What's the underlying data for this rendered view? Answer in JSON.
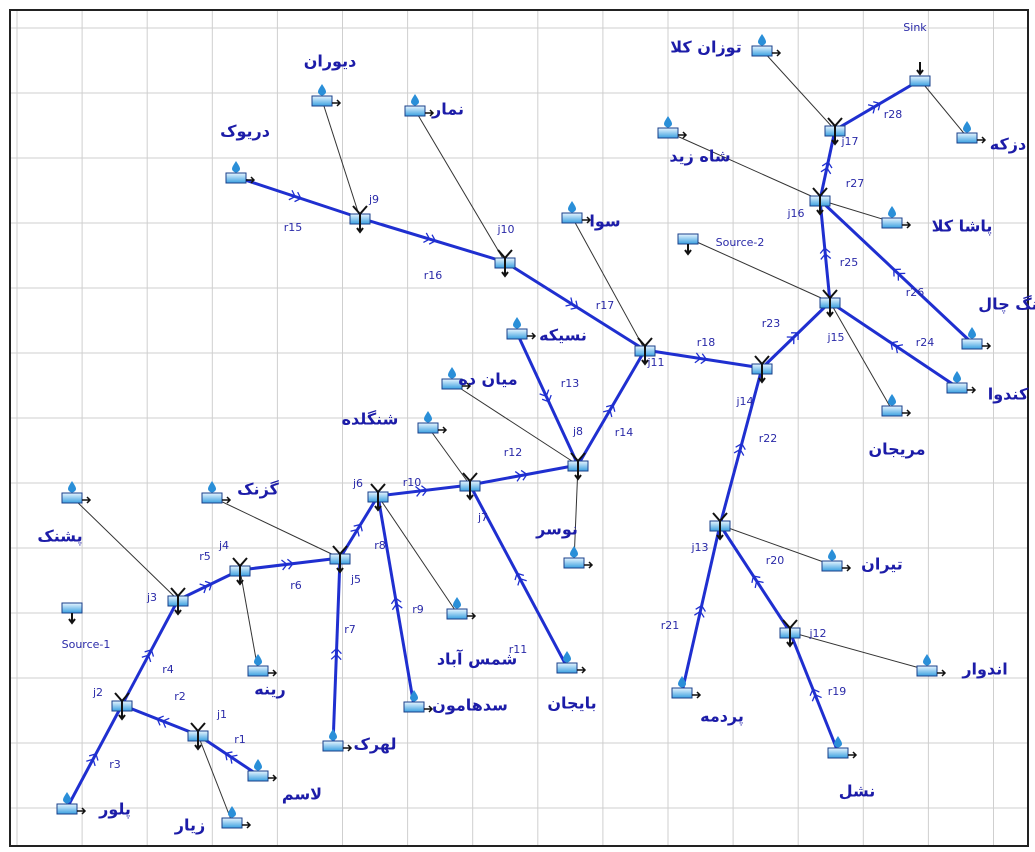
{
  "sites": [
    "دیوران",
    "نمار",
    "دریوک",
    "سوا",
    "نسیکه",
    "میان ده",
    "شنگلده",
    "نوسر",
    "گزنک",
    "پشنک",
    "رینه",
    "شمس آباد",
    "سدهامون",
    "بایجان",
    "لهرک",
    "لاسم",
    "پلور",
    "زیار",
    "توزان کلا",
    "دزکه",
    "شاه زید",
    "پاشا کلا",
    "نگ چال",
    "کندوا",
    "مریجان",
    "تیران",
    "اندوار",
    "پردمه",
    "نشل"
  ],
  "junctions": [
    "j1",
    "j2",
    "j3",
    "j4",
    "j5",
    "j6",
    "j7",
    "j8",
    "j9",
    "j10",
    "j11",
    "j12",
    "j13",
    "j14",
    "j15",
    "j16",
    "j17"
  ],
  "reaches": [
    "r1",
    "r2",
    "r3",
    "r4",
    "r5",
    "r6",
    "r7",
    "r8",
    "r9",
    "r10",
    "r11",
    "r12",
    "r13",
    "r14",
    "r15",
    "r16",
    "r17",
    "r18",
    "r19",
    "r20",
    "r21",
    "r22",
    "r23",
    "r24",
    "r25",
    "r26",
    "r27",
    "r28"
  ],
  "sources": [
    "Source-1",
    "Source-2"
  ],
  "sink": "Sink"
}
